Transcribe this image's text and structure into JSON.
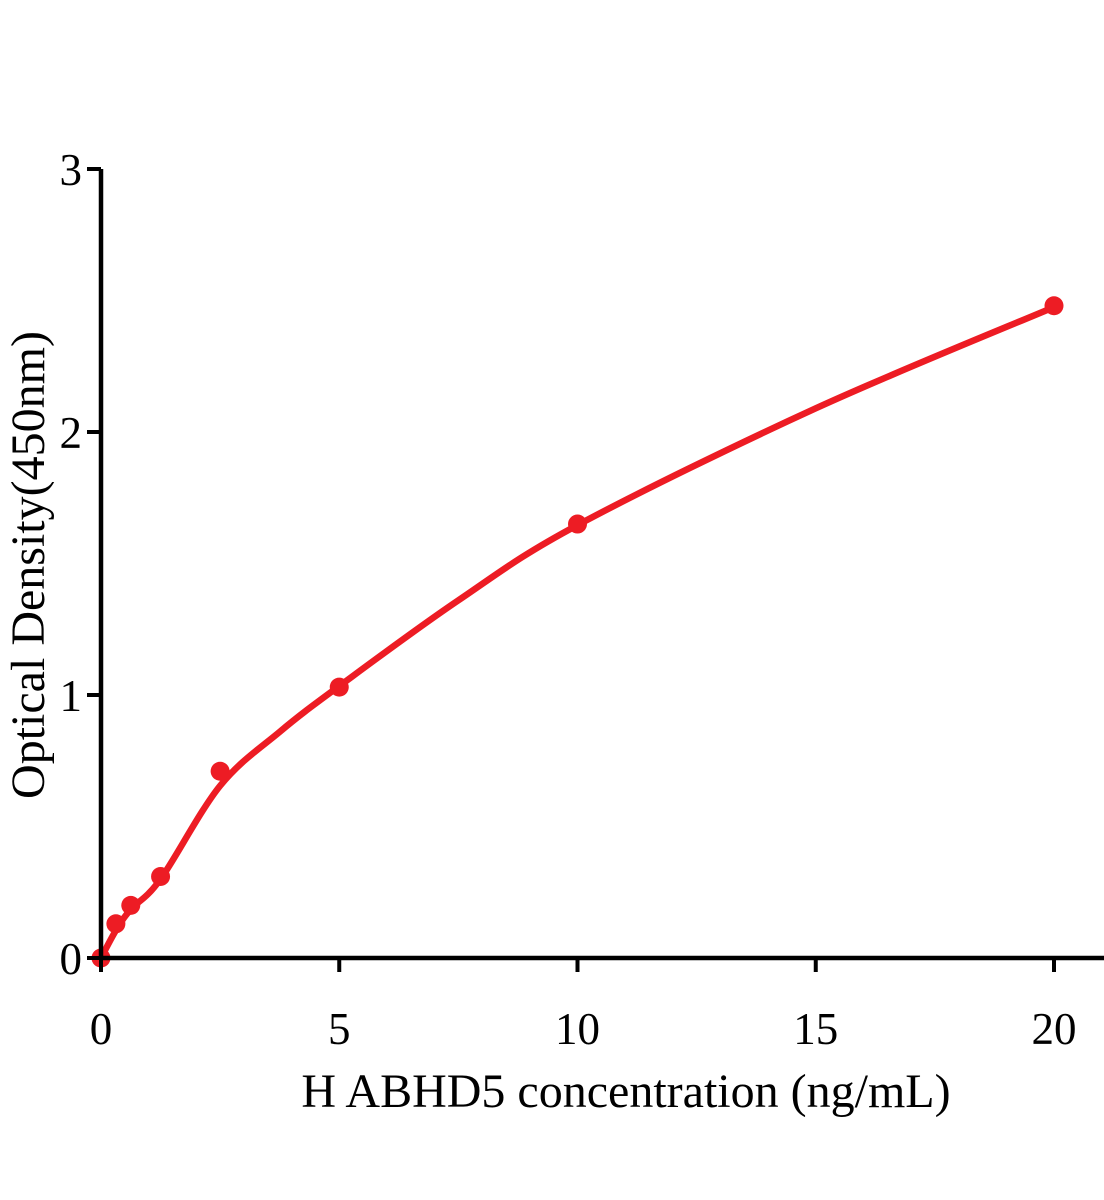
{
  "chart_data": {
    "type": "scatter",
    "title": "",
    "xlabel": "H ABHD5 concentration (ng/mL)",
    "ylabel": "Optical Density(450nm)",
    "xlim": [
      0,
      20
    ],
    "ylim": [
      0,
      3
    ],
    "x_ticks": [
      0,
      5,
      10,
      15,
      20
    ],
    "y_ticks": [
      0,
      1,
      2,
      3
    ],
    "grid": false,
    "legend": null,
    "marker": "circle",
    "series_color": "#ED1C24",
    "axis_color": "#000000",
    "background": "#ffffff",
    "points": [
      {
        "x": 0,
        "y": 0.0
      },
      {
        "x": 0.3125,
        "y": 0.13
      },
      {
        "x": 0.625,
        "y": 0.2
      },
      {
        "x": 1.25,
        "y": 0.31
      },
      {
        "x": 2.5,
        "y": 0.71
      },
      {
        "x": 5,
        "y": 1.03
      },
      {
        "x": 10,
        "y": 1.65
      },
      {
        "x": 20,
        "y": 2.48
      }
    ],
    "fit_curve": [
      {
        "x": 0,
        "y": 0.0
      },
      {
        "x": 0.3125,
        "y": 0.105
      },
      {
        "x": 0.625,
        "y": 0.185
      },
      {
        "x": 1.25,
        "y": 0.3
      },
      {
        "x": 2.5,
        "y": 0.655
      },
      {
        "x": 3.75,
        "y": 0.86
      },
      {
        "x": 5,
        "y": 1.034
      },
      {
        "x": 7.5,
        "y": 1.36
      },
      {
        "x": 10,
        "y": 1.646
      },
      {
        "x": 15,
        "y": 2.09
      },
      {
        "x": 20,
        "y": 2.475
      }
    ]
  }
}
